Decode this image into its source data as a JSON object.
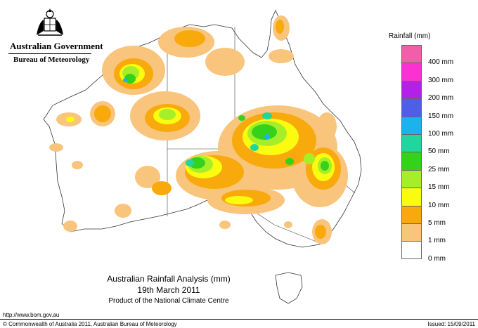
{
  "header": {
    "government": "Australian Government",
    "bureau": "Bureau of Meteorology"
  },
  "legend": {
    "title": "Rainfall (mm)",
    "items": [
      {
        "label": "",
        "color": "#f15fa9"
      },
      {
        "label": "400 mm",
        "color": "#fb31d2"
      },
      {
        "label": "300 mm",
        "color": "#b221e8"
      },
      {
        "label": "200 mm",
        "color": "#4e5ee6"
      },
      {
        "label": "150 mm",
        "color": "#1bb3ee"
      },
      {
        "label": "100 mm",
        "color": "#1fd69e"
      },
      {
        "label": "50 mm",
        "color": "#35d21c"
      },
      {
        "label": "25 mm",
        "color": "#a6ee28"
      },
      {
        "label": "15 mm",
        "color": "#fbfb10"
      },
      {
        "label": "10 mm",
        "color": "#f8a90c"
      },
      {
        "label": "5 mm",
        "color": "#f9c47b"
      },
      {
        "label": "1 mm",
        "color": "#ffffff"
      },
      {
        "label": "0 mm",
        "color": ""
      }
    ]
  },
  "title": {
    "line1": "Australian Rainfall Analysis (mm)",
    "line2": "19th March 2011",
    "line3": "Product of the National Climate Centre"
  },
  "footer": {
    "url": "http://www.bom.gov.au",
    "copyright": "© Commonwealth of Australia 2011, Australian Bureau of Meteorology",
    "issued": "Issued: 15/09/2011"
  }
}
